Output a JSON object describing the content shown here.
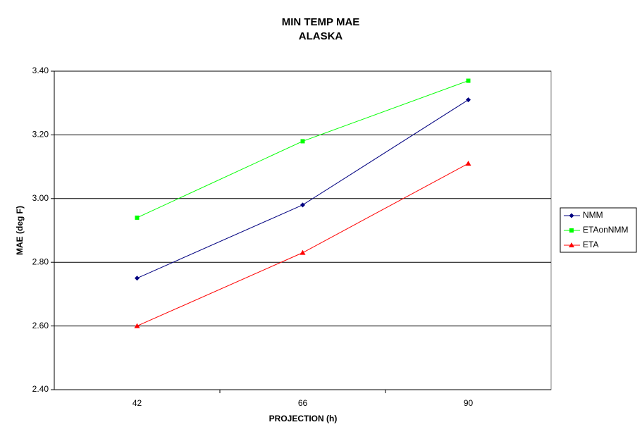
{
  "chart_data": {
    "type": "line",
    "title": "MIN TEMP MAE",
    "subtitle": "ALASKA",
    "x_label": "PROJECTION (h)",
    "y_label": "MAE (deg F)",
    "categories": [
      "42",
      "66",
      "90"
    ],
    "series": [
      {
        "name": "NMM",
        "color": "#000080",
        "marker": "diamond",
        "values": [
          2.75,
          2.98,
          3.31
        ]
      },
      {
        "name": "ETAonNMM",
        "color": "#00ff00",
        "marker": "square",
        "values": [
          2.94,
          3.18,
          3.37
        ]
      },
      {
        "name": "ETA",
        "color": "#ff0000",
        "marker": "triangle",
        "values": [
          2.6,
          2.83,
          3.11
        ]
      }
    ],
    "ylim": [
      2.4,
      3.4
    ],
    "yticks": [
      {
        "value": 2.4,
        "label": "2.40"
      },
      {
        "value": 2.6,
        "label": "2.60"
      },
      {
        "value": 2.8,
        "label": "2.80"
      },
      {
        "value": 3.0,
        "label": "3.00"
      },
      {
        "value": 3.2,
        "label": "3.20"
      },
      {
        "value": 3.4,
        "label": "3.40"
      }
    ],
    "grid": true,
    "legend": "right"
  }
}
